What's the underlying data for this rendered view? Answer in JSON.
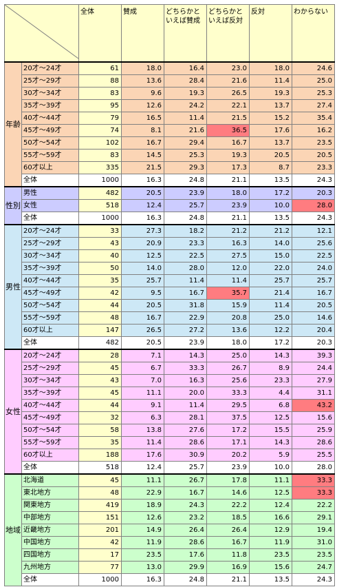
{
  "headers": [
    "全体",
    "賛成",
    "どちらかと いえば賛成",
    "どちらかと いえば反対",
    "反対",
    "わからない"
  ],
  "highlight_color": "#ff7c80",
  "groups": [
    {
      "id": "age",
      "title": "年齢",
      "rows": [
        {
          "label": "20才〜24才",
          "values": [
            "61",
            "18.0",
            "16.4",
            "23.0",
            "18.0",
            "24.6"
          ]
        },
        {
          "label": "25才〜29才",
          "values": [
            "88",
            "13.6",
            "28.4",
            "21.6",
            "11.4",
            "25.0"
          ]
        },
        {
          "label": "30才〜34才",
          "values": [
            "83",
            "9.6",
            "19.3",
            "26.5",
            "19.3",
            "25.3"
          ]
        },
        {
          "label": "35才〜39才",
          "values": [
            "95",
            "12.6",
            "24.2",
            "22.1",
            "13.7",
            "27.4"
          ]
        },
        {
          "label": "40才〜44才",
          "values": [
            "79",
            "16.5",
            "11.4",
            "21.5",
            "15.2",
            "35.4"
          ]
        },
        {
          "label": "45才〜49才",
          "values": [
            "74",
            "8.1",
            "21.6",
            "36.5",
            "17.6",
            "16.2"
          ],
          "highlight": [
            3
          ]
        },
        {
          "label": "50才〜54才",
          "values": [
            "102",
            "16.7",
            "29.4",
            "16.7",
            "13.7",
            "23.5"
          ]
        },
        {
          "label": "55才〜59才",
          "values": [
            "83",
            "14.5",
            "25.3",
            "19.3",
            "20.5",
            "20.5"
          ]
        },
        {
          "label": "60才以上",
          "values": [
            "335",
            "21.5",
            "29.3",
            "17.3",
            "8.7",
            "23.3"
          ]
        }
      ],
      "total": {
        "label": "全体",
        "values": [
          "1000",
          "16.3",
          "24.8",
          "21.1",
          "13.5",
          "24.3"
        ]
      }
    },
    {
      "id": "gen",
      "title": "性別",
      "rows": [
        {
          "label": "男性",
          "values": [
            "482",
            "20.5",
            "23.9",
            "18.0",
            "17.2",
            "20.3"
          ]
        },
        {
          "label": "女性",
          "values": [
            "518",
            "12.4",
            "25.7",
            "23.9",
            "10.0",
            "28.0"
          ],
          "highlight": [
            5
          ]
        }
      ],
      "total": {
        "label": "全体",
        "values": [
          "1000",
          "16.3",
          "24.8",
          "21.1",
          "13.5",
          "24.3"
        ]
      }
    },
    {
      "id": "male",
      "title": "男性",
      "rows": [
        {
          "label": "20才〜24才",
          "values": [
            "33",
            "27.3",
            "18.2",
            "21.2",
            "21.2",
            "12.1"
          ]
        },
        {
          "label": "25才〜29才",
          "values": [
            "43",
            "20.9",
            "23.3",
            "16.3",
            "14.0",
            "25.6"
          ]
        },
        {
          "label": "30才〜34才",
          "values": [
            "40",
            "12.5",
            "22.5",
            "27.5",
            "15.0",
            "22.5"
          ]
        },
        {
          "label": "35才〜39才",
          "values": [
            "50",
            "14.0",
            "28.0",
            "12.0",
            "22.0",
            "24.0"
          ]
        },
        {
          "label": "40才〜44才",
          "values": [
            "35",
            "25.7",
            "11.4",
            "11.4",
            "25.7",
            "25.7"
          ]
        },
        {
          "label": "45才〜49才",
          "values": [
            "42",
            "9.5",
            "16.7",
            "35.7",
            "21.4",
            "16.7"
          ],
          "highlight": [
            3
          ]
        },
        {
          "label": "50才〜54才",
          "values": [
            "44",
            "20.5",
            "31.8",
            "15.9",
            "11.4",
            "20.5"
          ]
        },
        {
          "label": "55才〜59才",
          "values": [
            "48",
            "16.7",
            "22.9",
            "20.8",
            "25.0",
            "14.6"
          ]
        },
        {
          "label": "60才以上",
          "values": [
            "147",
            "26.5",
            "27.2",
            "13.6",
            "12.2",
            "20.4"
          ]
        }
      ],
      "total": {
        "label": "全体",
        "values": [
          "482",
          "20.5",
          "23.9",
          "18.0",
          "17.2",
          "20.3"
        ]
      }
    },
    {
      "id": "fem",
      "title": "女性",
      "rows": [
        {
          "label": "20才〜24才",
          "values": [
            "28",
            "7.1",
            "14.3",
            "25.0",
            "14.3",
            "39.3"
          ]
        },
        {
          "label": "25才〜29才",
          "values": [
            "45",
            "6.7",
            "33.3",
            "26.7",
            "8.9",
            "24.4"
          ]
        },
        {
          "label": "30才〜34才",
          "values": [
            "43",
            "7.0",
            "16.3",
            "25.6",
            "23.3",
            "27.9"
          ]
        },
        {
          "label": "35才〜39才",
          "values": [
            "45",
            "11.1",
            "20.0",
            "33.3",
            "4.4",
            "31.1"
          ]
        },
        {
          "label": "40才〜44才",
          "values": [
            "44",
            "9.1",
            "11.4",
            "29.5",
            "6.8",
            "43.2"
          ],
          "highlight": [
            5
          ]
        },
        {
          "label": "45才〜49才",
          "values": [
            "32",
            "6.3",
            "28.1",
            "37.5",
            "12.5",
            "15.6"
          ]
        },
        {
          "label": "50才〜54才",
          "values": [
            "58",
            "13.8",
            "27.6",
            "17.2",
            "15.5",
            "25.9"
          ]
        },
        {
          "label": "55才〜59才",
          "values": [
            "35",
            "11.4",
            "28.6",
            "17.1",
            "14.3",
            "28.6"
          ]
        },
        {
          "label": "60才以上",
          "values": [
            "188",
            "17.6",
            "30.9",
            "20.2",
            "5.9",
            "25.5"
          ]
        }
      ],
      "total": {
        "label": "全体",
        "values": [
          "518",
          "12.4",
          "25.7",
          "23.9",
          "10.0",
          "28.0"
        ]
      }
    },
    {
      "id": "reg",
      "title": "地域",
      "rows": [
        {
          "label": "北海道",
          "values": [
            "45",
            "11.1",
            "26.7",
            "17.8",
            "11.1",
            "33.3"
          ],
          "highlight": [
            5
          ]
        },
        {
          "label": "東北地方",
          "values": [
            "48",
            "22.9",
            "16.7",
            "14.6",
            "12.5",
            "33.3"
          ],
          "highlight": [
            5
          ]
        },
        {
          "label": "関東地方",
          "values": [
            "419",
            "18.9",
            "24.3",
            "22.2",
            "12.4",
            "22.2"
          ]
        },
        {
          "label": "中部地方",
          "values": [
            "151",
            "12.6",
            "23.2",
            "18.5",
            "16.6",
            "29.1"
          ]
        },
        {
          "label": "近畿地方",
          "values": [
            "201",
            "14.9",
            "26.4",
            "26.4",
            "12.9",
            "19.4"
          ]
        },
        {
          "label": "中国地方",
          "values": [
            "42",
            "11.9",
            "28.6",
            "16.7",
            "11.9",
            "31.0"
          ]
        },
        {
          "label": "四国地方",
          "values": [
            "17",
            "23.5",
            "17.6",
            "11.8",
            "23.5",
            "23.5"
          ]
        },
        {
          "label": "九州地方",
          "values": [
            "77",
            "13.0",
            "29.9",
            "16.9",
            "15.6",
            "24.7"
          ]
        }
      ],
      "total": {
        "label": "全体",
        "values": [
          "1000",
          "16.3",
          "24.8",
          "21.1",
          "13.5",
          "24.3"
        ]
      }
    }
  ]
}
